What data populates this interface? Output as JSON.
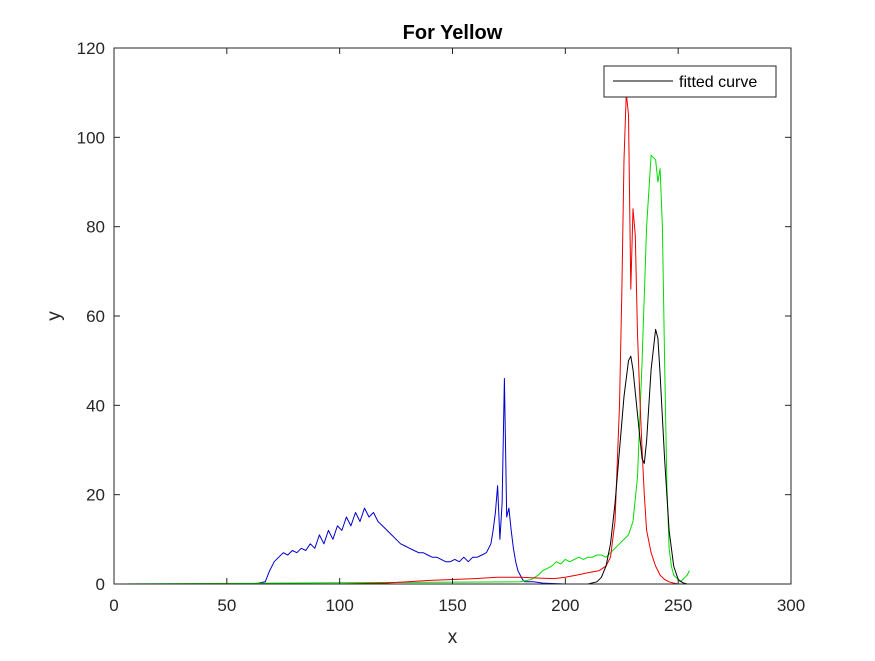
{
  "chart_data": {
    "type": "line",
    "title": "For Yellow",
    "xlabel": "x",
    "ylabel": "y",
    "xlim": [
      0,
      300
    ],
    "ylim": [
      0,
      120
    ],
    "xticks": [
      "0",
      "50",
      "100",
      "150",
      "200",
      "250",
      "300"
    ],
    "yticks": [
      "0",
      "20",
      "40",
      "60",
      "80",
      "100",
      "120"
    ],
    "grid": false,
    "legend": {
      "position": "top-right",
      "entries": [
        "fitted curve"
      ]
    },
    "series": [
      {
        "color": "#0000cc",
        "x": [
          0,
          55,
          62,
          67,
          69,
          71,
          73,
          75,
          77,
          79,
          81,
          83,
          85,
          87,
          89,
          91,
          93,
          95,
          97,
          99,
          101,
          103,
          105,
          107,
          109,
          111,
          113,
          115,
          117,
          119,
          121,
          123,
          125,
          127,
          129,
          131,
          133,
          135,
          137,
          139,
          141,
          143,
          145,
          147,
          149,
          151,
          153,
          155,
          157,
          159,
          161,
          163,
          165,
          167,
          168,
          169,
          170,
          171,
          172,
          173,
          174,
          175,
          176,
          177,
          178,
          179,
          180,
          181,
          182,
          184,
          186,
          190,
          200,
          300
        ],
        "y": [
          0,
          0,
          0,
          0.5,
          3,
          5,
          6,
          7,
          6.5,
          7.5,
          7,
          8,
          7.5,
          9,
          8,
          11,
          9,
          12,
          10,
          13,
          12,
          15,
          13,
          16,
          14,
          17,
          15,
          16,
          14,
          13,
          12,
          11,
          10,
          9,
          8.5,
          8,
          7.5,
          7,
          7,
          6.5,
          6,
          6,
          5.5,
          5,
          5,
          5.5,
          5,
          6,
          5,
          6,
          6,
          6.5,
          7,
          9,
          12,
          16,
          22,
          10,
          18,
          46,
          15,
          17,
          12,
          8,
          5,
          3,
          2,
          1,
          0.5,
          0.5,
          0.5,
          0.2,
          0,
          0
        ]
      },
      {
        "color": "#00dd00",
        "x": [
          0,
          180,
          185,
          188,
          190,
          192,
          194,
          196,
          198,
          200,
          202,
          204,
          206,
          208,
          210,
          212,
          214,
          216,
          218,
          220,
          222,
          224,
          226,
          228,
          230,
          232,
          234,
          236,
          238,
          240,
          241,
          242,
          243,
          244,
          245,
          246,
          247,
          248,
          249,
          250,
          251,
          252,
          253,
          254,
          255
        ],
        "y": [
          0,
          0.5,
          1,
          2,
          3,
          3.5,
          4,
          5,
          4.5,
          5.5,
          5,
          5.5,
          6,
          5.5,
          6,
          6,
          6.5,
          6.5,
          6,
          7,
          8,
          9,
          10,
          11,
          14,
          24,
          50,
          80,
          96,
          95,
          90,
          93,
          80,
          50,
          22,
          8,
          4,
          2,
          1.5,
          1,
          0.5,
          1,
          1.5,
          2,
          3
        ]
      },
      {
        "color": "#ee0000",
        "x": [
          0,
          80,
          100,
          120,
          130,
          140,
          150,
          160,
          170,
          180,
          190,
          195,
          200,
          205,
          210,
          215,
          218,
          220,
          222,
          224,
          225,
          226,
          227,
          228,
          229,
          230,
          231,
          232,
          233,
          234,
          235,
          236,
          238,
          240,
          242,
          244,
          246,
          248,
          250,
          300
        ],
        "y": [
          0,
          0,
          0,
          0.2,
          0.5,
          0.8,
          1,
          1.2,
          1.5,
          1.5,
          1.3,
          1.2,
          1.5,
          2,
          2.5,
          3,
          4,
          6,
          14,
          40,
          65,
          95,
          110,
          105,
          66,
          84,
          78,
          56,
          42,
          30,
          20,
          12,
          7,
          4,
          2,
          1,
          0.5,
          0.2,
          0,
          0
        ]
      },
      {
        "color": "#000000",
        "name": "fitted curve",
        "x": [
          0,
          210,
          214,
          216,
          218,
          220,
          222,
          224,
          226,
          228,
          229,
          230,
          232,
          234,
          235,
          236,
          238,
          240,
          241,
          242,
          244,
          246,
          248,
          250,
          252,
          254,
          300
        ],
        "y": [
          0,
          0,
          0.5,
          1.5,
          4,
          9,
          18,
          30,
          42,
          50,
          51,
          48,
          38,
          28,
          27,
          32,
          48,
          57,
          55,
          47,
          28,
          12,
          4,
          1,
          0.3,
          0,
          0
        ]
      }
    ]
  }
}
